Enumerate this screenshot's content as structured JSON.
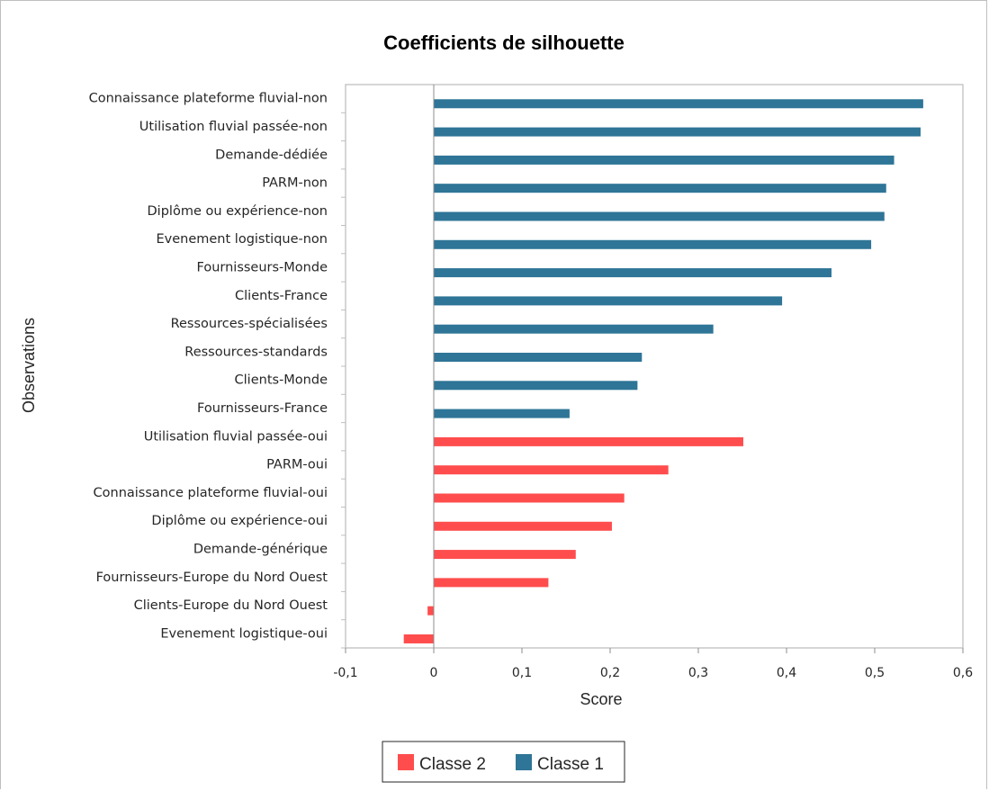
{
  "chart_data": {
    "type": "bar",
    "orientation": "horizontal",
    "title": "Coefficients de silhouette",
    "xlabel": "Score",
    "ylabel": "Observations",
    "xlim": [
      -0.1,
      0.6
    ],
    "xticks": [
      "-0,1",
      "0",
      "0,1",
      "0,2",
      "0,3",
      "0,4",
      "0,5",
      "0,6"
    ],
    "xtick_values": [
      -0.1,
      0,
      0.1,
      0.2,
      0.3,
      0.4,
      0.5,
      0.6
    ],
    "grid": false,
    "legend_position": "bottom",
    "colors": {
      "Classe 1": "#2e7597",
      "Classe 2": "#ff4d4d"
    },
    "legend": [
      {
        "name": "Classe 2",
        "color": "#ff4d4d"
      },
      {
        "name": "Classe 1",
        "color": "#2e7597"
      }
    ],
    "bars": [
      {
        "label": "Connaissance plateforme fluvial-non",
        "value": 0.555,
        "series": "Classe 1"
      },
      {
        "label": "Utilisation fluvial passée-non",
        "value": 0.552,
        "series": "Classe 1"
      },
      {
        "label": "Demande-dédiée",
        "value": 0.522,
        "series": "Classe 1"
      },
      {
        "label": "PARM-non",
        "value": 0.513,
        "series": "Classe 1"
      },
      {
        "label": "Diplôme ou expérience-non",
        "value": 0.511,
        "series": "Classe 1"
      },
      {
        "label": "Evenement logistique-non",
        "value": 0.496,
        "series": "Classe 1"
      },
      {
        "label": "Fournisseurs-Monde",
        "value": 0.451,
        "series": "Classe 1"
      },
      {
        "label": "Clients-France",
        "value": 0.395,
        "series": "Classe 1"
      },
      {
        "label": "Ressources-spécialisées",
        "value": 0.317,
        "series": "Classe 1"
      },
      {
        "label": "Ressources-standards",
        "value": 0.236,
        "series": "Classe 1"
      },
      {
        "label": "Clients-Monde",
        "value": 0.231,
        "series": "Classe 1"
      },
      {
        "label": "Fournisseurs-France",
        "value": 0.154,
        "series": "Classe 1"
      },
      {
        "label": "Utilisation fluvial passée-oui",
        "value": 0.351,
        "series": "Classe 2"
      },
      {
        "label": "PARM-oui",
        "value": 0.266,
        "series": "Classe 2"
      },
      {
        "label": "Connaissance plateforme fluvial-oui",
        "value": 0.216,
        "series": "Classe 2"
      },
      {
        "label": "Diplôme ou expérience-oui",
        "value": 0.202,
        "series": "Classe 2"
      },
      {
        "label": "Demande-générique",
        "value": 0.161,
        "series": "Classe 2"
      },
      {
        "label": "Fournisseurs-Europe du Nord Ouest",
        "value": 0.13,
        "series": "Classe 2"
      },
      {
        "label": "Clients-Europe du Nord Ouest",
        "value": -0.007,
        "series": "Classe 2"
      },
      {
        "label": "Evenement logistique-oui",
        "value": -0.034,
        "series": "Classe 2"
      }
    ]
  }
}
